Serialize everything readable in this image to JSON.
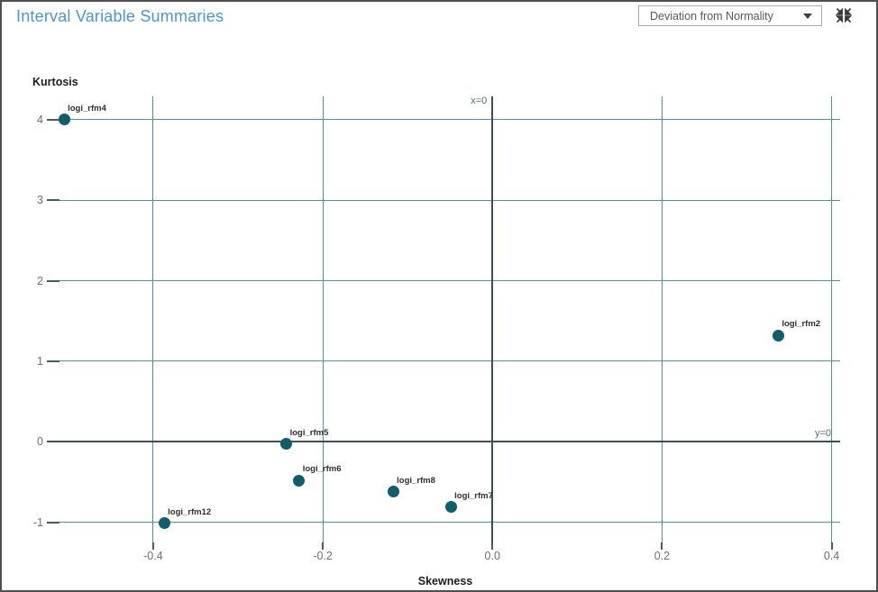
{
  "window": {
    "title": "Interval Variable Summaries"
  },
  "toolbar": {
    "dropdown": {
      "value": "Deviation from Normality"
    },
    "collapse_tooltip": "collapse"
  },
  "colors": {
    "title_accent": "#4a97cd",
    "point": "#0d5f6e",
    "gridline": "#55929a",
    "reference_line": "#3c5157",
    "tick_label": "#6e6e6e",
    "ref_label": "#566b70",
    "point_label": "#2e2e2e",
    "tick_mark": "#4a5a5f"
  },
  "chart_data": {
    "type": "scatter",
    "title": "Interval Variable Summaries",
    "xlabel": "Skewness",
    "ylabel": "Kurtosis",
    "xlim": [
      -0.52,
      0.41
    ],
    "ylim": [
      -1.25,
      4.29
    ],
    "grid": true,
    "xticks": [
      {
        "v": -0.4,
        "label": "-0.4"
      },
      {
        "v": -0.2,
        "label": "-0.2"
      },
      {
        "v": 0.0,
        "label": "0.0"
      },
      {
        "v": 0.2,
        "label": "0.2"
      },
      {
        "v": 0.4,
        "label": "0.4"
      }
    ],
    "yticks": [
      {
        "v": 4,
        "label": "4"
      },
      {
        "v": 3,
        "label": "3"
      },
      {
        "v": 2,
        "label": "2"
      },
      {
        "v": 1,
        "label": "1"
      },
      {
        "v": 0,
        "label": "0"
      },
      {
        "v": -1,
        "label": "-1"
      }
    ],
    "reference_lines": [
      {
        "axis": "x",
        "v": 0,
        "label": "x=0"
      },
      {
        "axis": "y",
        "v": 0,
        "label": "y=0"
      }
    ],
    "points": [
      {
        "label": "logi_rfm4",
        "x": -0.505,
        "y": 4.0
      },
      {
        "label": "logi_rfm2",
        "x": 0.337,
        "y": 1.32
      },
      {
        "label": "logi_rfm5",
        "x": -0.243,
        "y": -0.03
      },
      {
        "label": "logi_rfm6",
        "x": -0.228,
        "y": -0.48
      },
      {
        "label": "logi_rfm8",
        "x": -0.117,
        "y": -0.62
      },
      {
        "label": "logi_rfm7",
        "x": -0.049,
        "y": -0.81
      },
      {
        "label": "logi_rfm12",
        "x": -0.387,
        "y": -1.01
      }
    ]
  }
}
